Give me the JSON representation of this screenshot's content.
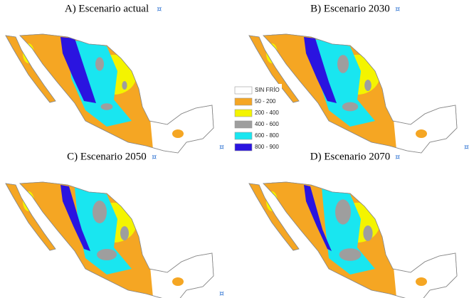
{
  "maps": [
    {
      "title": "A) Escenario actual"
    },
    {
      "title": "B) Escenario 2030"
    },
    {
      "title": "C) Escenario 2050"
    },
    {
      "title": "D) Escenario 2070"
    }
  ],
  "end_mark": "¤",
  "legend": [
    {
      "label": "SIN FRÍO",
      "color": "#ffffff"
    },
    {
      "label": "50 - 200",
      "color": "#f5a623"
    },
    {
      "label": "200 - 400",
      "color": "#f4f400"
    },
    {
      "label": "400 - 600",
      "color": "#9e9e9e"
    },
    {
      "label": "600 - 800",
      "color": "#19e6f0"
    },
    {
      "label": "800 - 900",
      "color": "#2a14e0"
    }
  ]
}
